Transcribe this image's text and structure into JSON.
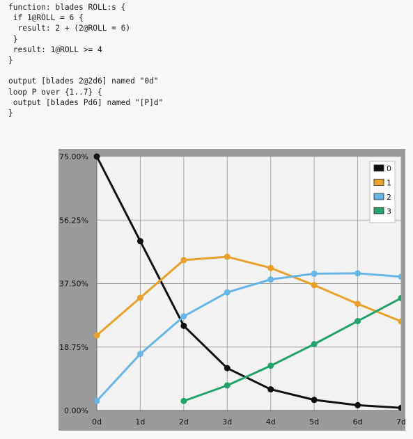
{
  "code": {
    "lines": [
      "function: blades ROLL:s {",
      " if 1@ROLL = 6 {",
      "  result: 2 + (2@ROLL = 6)",
      " }",
      " result: 1@ROLL >= 4",
      "}",
      "",
      "output [blades 2@2d6] named \"0d\"",
      "loop P over {1..7} {",
      " output [blades Pd6] named \"[P]d\"",
      "}"
    ]
  },
  "chart_data": {
    "type": "line",
    "categories": [
      "0d",
      "1d",
      "2d",
      "3d",
      "4d",
      "5d",
      "6d",
      "7d"
    ],
    "y_tick_labels": [
      "75.00%",
      "56.25%",
      "37.50%",
      "18.75%",
      "0.00%"
    ],
    "ylim": [
      0,
      75
    ],
    "y_unit": "percent",
    "grid": true,
    "legend_position": "top-right",
    "series": [
      {
        "name": "0",
        "color": "#111111",
        "values": [
          75.0,
          50.0,
          25.0,
          12.5,
          6.25,
          3.13,
          1.56,
          0.78
        ]
      },
      {
        "name": "1",
        "color": "#e8a22b",
        "values": [
          22.2,
          33.3,
          44.4,
          45.4,
          42.1,
          37.0,
          31.5,
          26.3
        ]
      },
      {
        "name": "2",
        "color": "#67b6e6",
        "values": [
          2.8,
          16.7,
          27.8,
          34.9,
          38.7,
          40.4,
          40.5,
          39.5
        ]
      },
      {
        "name": "3",
        "color": "#23a26a",
        "values": [
          null,
          null,
          2.8,
          7.4,
          13.2,
          19.6,
          26.4,
          33.2
        ]
      }
    ]
  }
}
